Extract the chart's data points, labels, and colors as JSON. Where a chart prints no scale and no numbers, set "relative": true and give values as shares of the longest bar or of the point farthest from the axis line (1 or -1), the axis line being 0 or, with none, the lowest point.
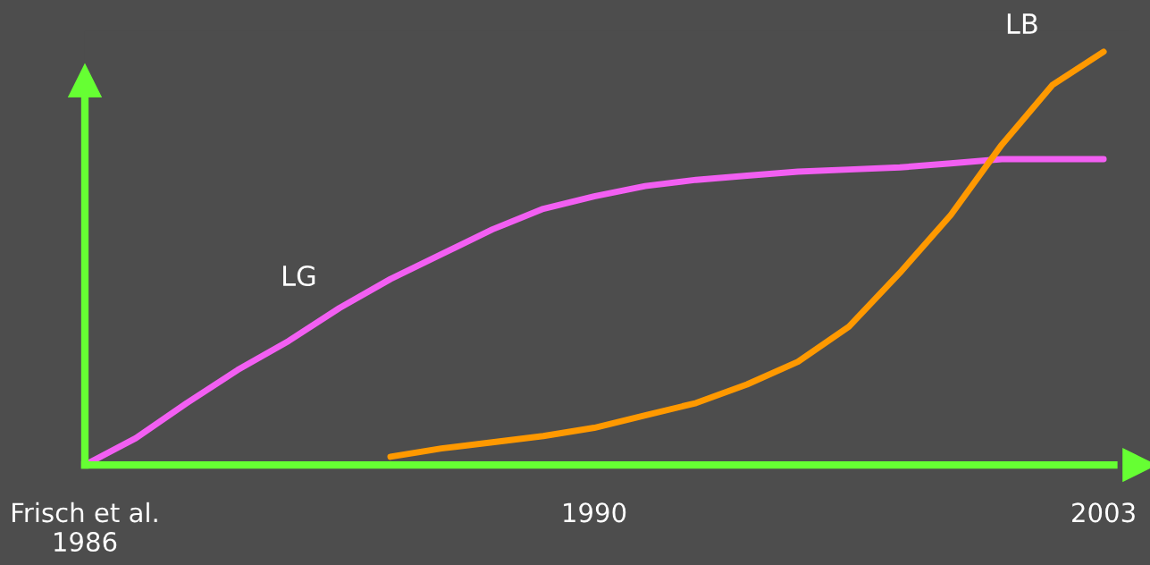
{
  "chart_data": {
    "type": "line",
    "relative": true,
    "categories": [
      "Frisch et al.\n1986",
      null,
      null,
      null,
      null,
      null,
      null,
      null,
      null,
      null,
      "1990",
      null,
      null,
      null,
      null,
      null,
      null,
      null,
      null,
      null,
      "2003"
    ],
    "series": [
      {
        "name": "LG",
        "color": "#f25ff2",
        "values": [
          0.0,
          0.065,
          0.15,
          0.23,
          0.3,
          0.38,
          0.45,
          0.51,
          0.57,
          0.62,
          0.65,
          0.675,
          0.69,
          0.7,
          0.71,
          0.715,
          0.72,
          0.73,
          0.74,
          0.74,
          0.74
        ]
      },
      {
        "name": "LB",
        "color": "#ff9900",
        "values": [
          null,
          null,
          null,
          null,
          null,
          null,
          0.02,
          0.04,
          0.055,
          0.07,
          0.09,
          0.12,
          0.15,
          0.195,
          0.25,
          0.335,
          0.465,
          0.605,
          0.775,
          0.92,
          1.0
        ]
      }
    ],
    "grid": false,
    "legend": false,
    "marker": "none",
    "line_style": "solid"
  }
}
